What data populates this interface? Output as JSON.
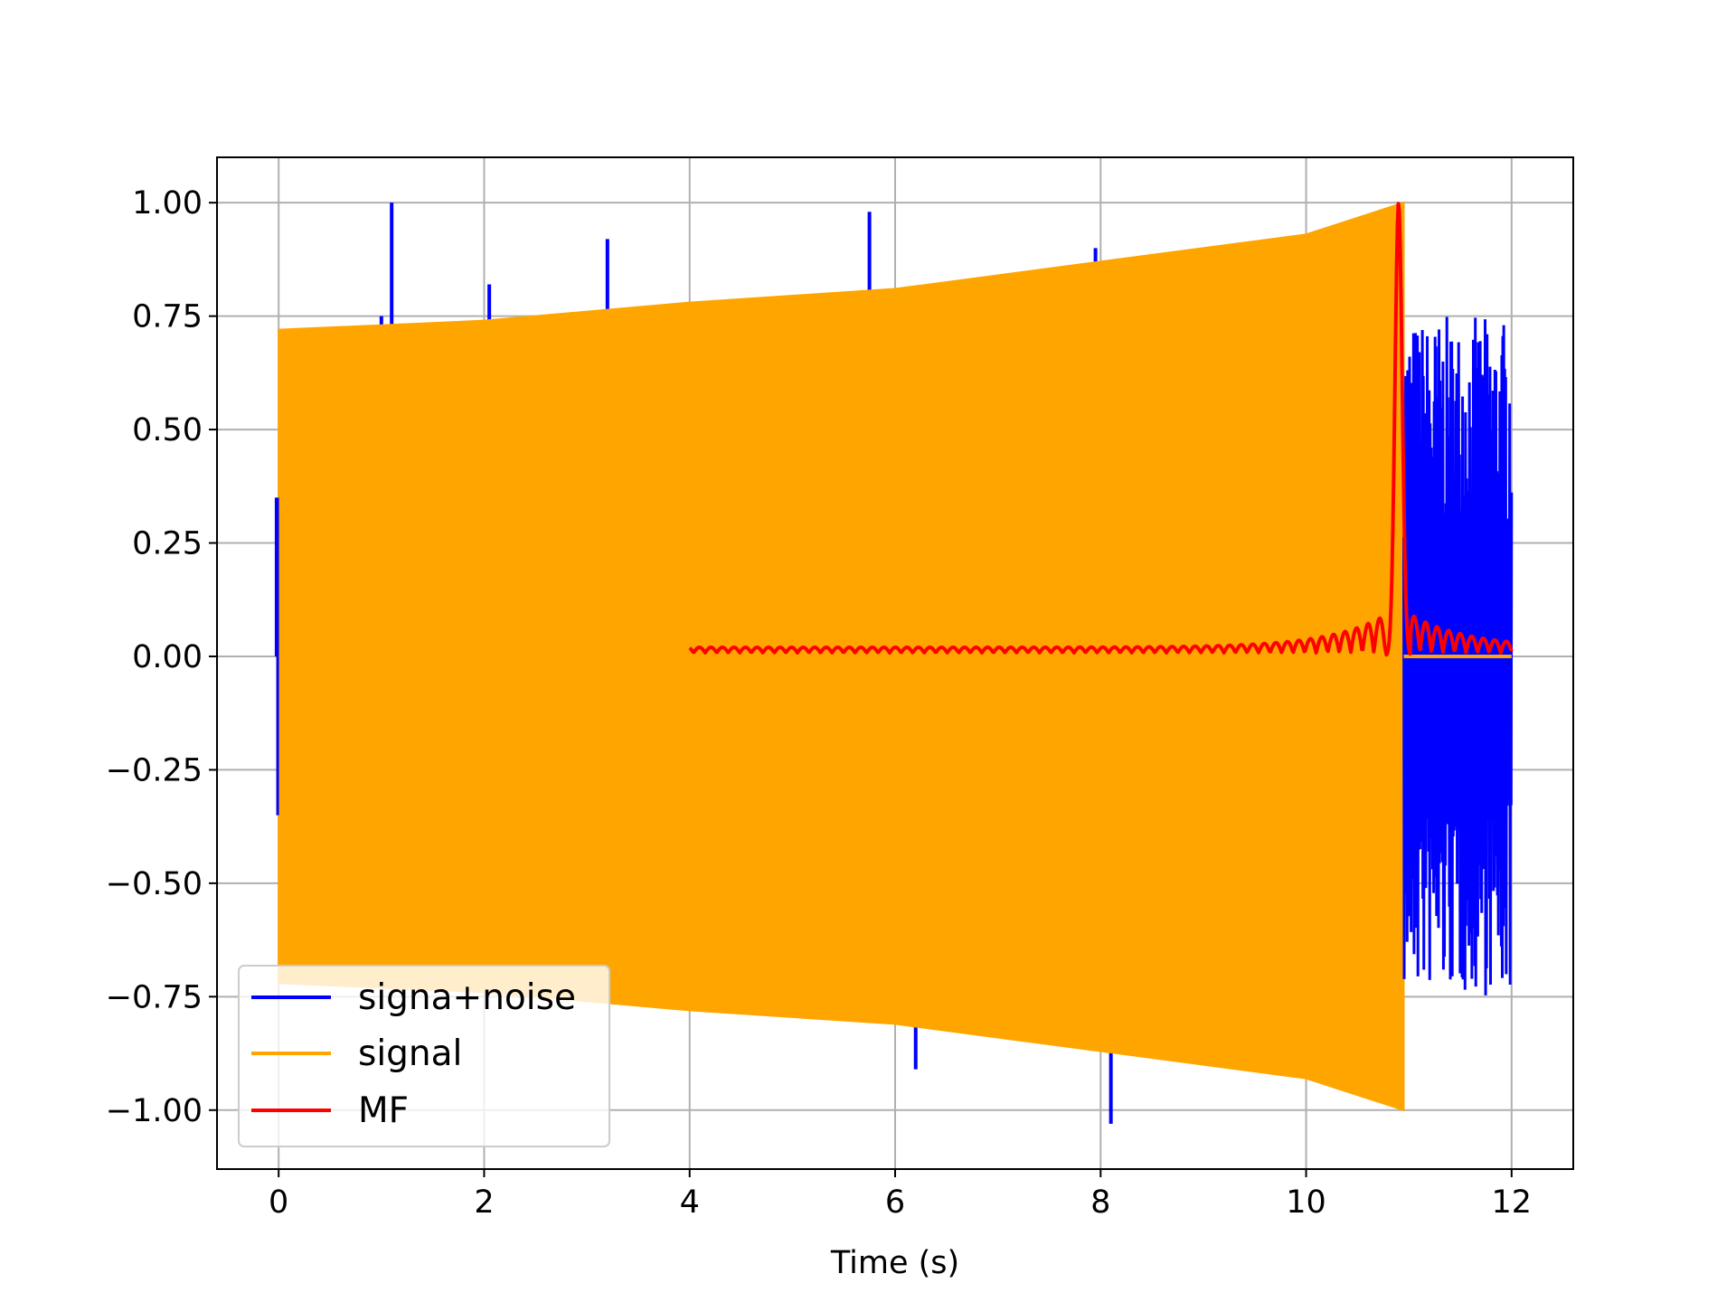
{
  "chart_data": {
    "type": "line",
    "title": "",
    "xlabel": "Time (s)",
    "ylabel": "",
    "xlim": [
      -0.6,
      12.6
    ],
    "ylim": [
      -1.13,
      1.1
    ],
    "xticks": [
      0,
      2,
      4,
      6,
      8,
      10,
      12
    ],
    "xtick_labels": [
      "0",
      "2",
      "4",
      "6",
      "8",
      "10",
      "12"
    ],
    "yticks": [
      1.0,
      0.75,
      0.5,
      0.25,
      0.0,
      -0.25,
      -0.5,
      -0.75,
      -1.0
    ],
    "ytick_labels": [
      "1.00",
      "0.75",
      "0.50",
      "0.25",
      "0.00",
      "−0.25",
      "−0.50",
      "−0.75",
      "−1.00"
    ],
    "grid": true,
    "legend_position": "lower-left",
    "series": [
      {
        "name": "signa+noise",
        "color": "#0000ff",
        "description_points": {
          "spikes": [
            {
              "x": -0.02,
              "y": 0.35
            },
            {
              "x": 1.0,
              "y": 0.75
            },
            {
              "x": 1.1,
              "y": 1.0
            },
            {
              "x": 2.05,
              "y": 0.82
            },
            {
              "x": 3.2,
              "y": 0.92
            },
            {
              "x": 3.45,
              "y": 0.77
            },
            {
              "x": 5.75,
              "y": 0.98
            },
            {
              "x": 7.95,
              "y": 0.9
            },
            {
              "x": 6.2,
              "y": -0.91
            },
            {
              "x": 8.1,
              "y": -1.03
            }
          ],
          "noise_region": {
            "x_start": 10.95,
            "x_end": 12.0,
            "amplitude": 0.75
          }
        }
      },
      {
        "name": "signal",
        "color": "#ffa500",
        "envelope": [
          {
            "x": 0.0,
            "y": 0.72
          },
          {
            "x": 2.0,
            "y": 0.74
          },
          {
            "x": 4.0,
            "y": 0.78
          },
          {
            "x": 6.0,
            "y": 0.81
          },
          {
            "x": 8.0,
            "y": 0.87
          },
          {
            "x": 10.0,
            "y": 0.93
          },
          {
            "x": 10.95,
            "y": 1.0
          }
        ],
        "flat_after": {
          "x_start": 10.95,
          "x_end": 12.0,
          "y": 0.0
        }
      },
      {
        "name": "MF",
        "color": "#ff0000",
        "x_start": 4.0,
        "x_end": 12.0,
        "peak": {
          "x": 10.9,
          "y": 1.0
        }
      }
    ]
  }
}
